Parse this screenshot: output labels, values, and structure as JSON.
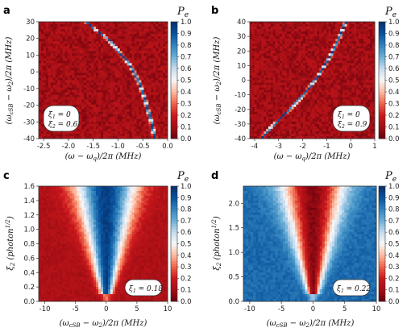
{
  "chart_data": [
    {
      "panel": "a",
      "type": "heatmap",
      "xlabel": "(ω − ω_q)/2π (MHz)",
      "ylabel": "(ω_cSB − ω_2)/2π (MHz)",
      "xlim": [
        -2.6,
        0.0
      ],
      "ylim": [
        -40,
        30
      ],
      "xticks": [
        "-2.5",
        "-2.0",
        "-1.5",
        "-1.0",
        "-0.5",
        "0.0"
      ],
      "xtick_values": [
        -2.5,
        -2.0,
        -1.5,
        -1.0,
        -0.5,
        0.0
      ],
      "yticks": [
        "-40",
        "-30",
        "-20",
        "-10",
        "0",
        "10",
        "20",
        "30"
      ],
      "ytick_values": [
        -40,
        -30,
        -20,
        -10,
        0,
        10,
        20,
        30
      ],
      "colorbar": {
        "label": "P_e",
        "min": 0,
        "max": 1.0,
        "ticks": [
          "0.0",
          "0.1",
          "0.2",
          "0.3",
          "0.4",
          "0.5",
          "0.6",
          "0.7",
          "0.8",
          "0.9",
          "1.0"
        ]
      },
      "background_level": 0.1,
      "annotation": [
        "ξ₁ = 0",
        "ξ₂ = 0.6"
      ],
      "resonance_curve": {
        "x": [
          -1.65,
          -1.45,
          -1.22,
          -0.98,
          -0.76,
          -0.58,
          -0.44,
          -0.33,
          -0.26
        ],
        "y": [
          30,
          25,
          20,
          12,
          4,
          -6,
          -18,
          -30,
          -40
        ]
      }
    },
    {
      "panel": "b",
      "type": "heatmap",
      "xlabel": "(ω − ω_q)/2π (MHz)",
      "ylabel": "(ω_cSB − ω_2)/2π (MHz)",
      "xlim": [
        -4.2,
        1.0
      ],
      "ylim": [
        -40,
        40
      ],
      "xticks": [
        "-4",
        "-3",
        "-2",
        "-1",
        "0",
        "1"
      ],
      "xtick_values": [
        -4,
        -3,
        -2,
        -1,
        0,
        1
      ],
      "yticks": [
        "-40",
        "-30",
        "-20",
        "-10",
        "0",
        "10",
        "20",
        "30",
        "40"
      ],
      "ytick_values": [
        -40,
        -30,
        -20,
        -10,
        0,
        10,
        20,
        30,
        40
      ],
      "colorbar": {
        "label": "P_e",
        "min": 0,
        "max": 1.0,
        "ticks": [
          "0.0",
          "0.1",
          "0.2",
          "0.3",
          "0.4",
          "0.5",
          "0.6",
          "0.7",
          "0.8",
          "0.9",
          "1.0"
        ]
      },
      "background_level": 0.1,
      "annotation": [
        "ξ₁ = 0",
        "ξ₂ = 0.9"
      ],
      "resonance_curve": {
        "x": [
          -3.72,
          -3.3,
          -2.85,
          -2.35,
          -1.85,
          -1.35,
          -0.9,
          -0.5,
          -0.2
        ],
        "y": [
          -40,
          -32,
          -25,
          -17,
          -8,
          3,
          15,
          28,
          40
        ]
      }
    },
    {
      "panel": "c",
      "type": "heatmap",
      "xlabel": "(ω_cSB − ω_2)/2π (MHz)",
      "ylabel": "ξ₂ (photon^1/2)",
      "xlim": [
        -11,
        10
      ],
      "ylim": [
        0.0,
        1.6
      ],
      "xticks": [
        "-10",
        "-5",
        "0",
        "5",
        "10"
      ],
      "xtick_values": [
        -10,
        -5,
        0,
        5,
        10
      ],
      "yticks": [
        "0.0",
        "0.2",
        "0.4",
        "0.6",
        "0.8",
        "1.0",
        "1.2",
        "1.4",
        "1.6"
      ],
      "ytick_values": [
        0.0,
        0.2,
        0.4,
        0.6,
        0.8,
        1.0,
        1.2,
        1.4,
        1.6
      ],
      "colorbar": {
        "label": "P_e",
        "min": 0,
        "max": 1.0,
        "ticks": [
          "0.0",
          "0.1",
          "0.2",
          "0.3",
          "0.4",
          "0.5",
          "0.6",
          "0.7",
          "0.8",
          "0.9",
          "1.0"
        ]
      },
      "background_level": 0.12,
      "center_level": 0.95,
      "annotation": [
        "ξ₁ = 0.18"
      ]
    },
    {
      "panel": "d",
      "type": "heatmap",
      "xlabel": "(ω_cSB − ω_2)/2π (MHz)",
      "ylabel": "ξ₂ (photon^1/2)",
      "xlim": [
        -11,
        10
      ],
      "ylim": [
        0.0,
        2.35
      ],
      "xticks": [
        "-10",
        "-5",
        "0",
        "5",
        "10"
      ],
      "xtick_values": [
        -10,
        -5,
        0,
        5,
        10
      ],
      "yticks": [
        "0.0",
        "0.5",
        "1.0",
        "1.5",
        "2.0"
      ],
      "ytick_values": [
        0.0,
        0.5,
        1.0,
        1.5,
        2.0
      ],
      "colorbar": {
        "label": "P_e",
        "min": 0,
        "max": 1.0,
        "ticks": [
          "0.0",
          "0.1",
          "0.2",
          "0.3",
          "0.4",
          "0.5",
          "0.6",
          "0.7",
          "0.8",
          "0.9",
          "1.0"
        ]
      },
      "background_level": 0.85,
      "center_level": 0.05,
      "annotation": [
        "ξ₁ = 0.22"
      ]
    }
  ]
}
